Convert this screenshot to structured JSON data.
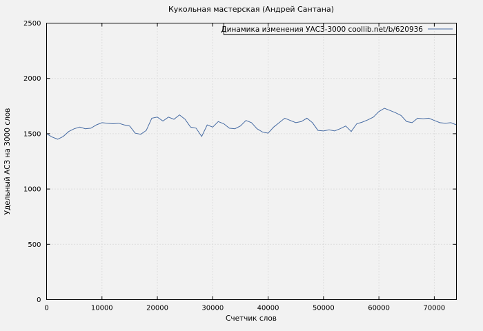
{
  "colors": {
    "background": "#f2f2f2",
    "axis": "#000000",
    "grid": "#c8c8c8",
    "line": "#466ba3"
  },
  "chart_data": {
    "type": "line",
    "title": "Кукольная мастерская (Андрей Сантана)",
    "xlabel": "Счетчик слов",
    "ylabel": "Удельный АСЗ на 3000 слов",
    "xlim": [
      0,
      74000
    ],
    "ylim": [
      0,
      2500
    ],
    "xticks": [
      0,
      10000,
      20000,
      30000,
      40000,
      50000,
      60000,
      70000
    ],
    "yticks": [
      0,
      500,
      1000,
      1500,
      2000,
      2500
    ],
    "grid": true,
    "legend_position": "top-right-inside",
    "series": [
      {
        "name": "Динамика изменения УАСЗ-3000 coollib.net/b/620936",
        "color": "#466ba3",
        "x": [
          0,
          1000,
          2000,
          3000,
          4000,
          5000,
          6000,
          7000,
          8000,
          9000,
          10000,
          11000,
          12000,
          13000,
          14000,
          15000,
          16000,
          17000,
          18000,
          19000,
          20000,
          21000,
          22000,
          23000,
          24000,
          25000,
          26000,
          27000,
          28000,
          29000,
          30000,
          31000,
          32000,
          33000,
          34000,
          35000,
          36000,
          37000,
          38000,
          39000,
          40000,
          41000,
          42000,
          43000,
          44000,
          45000,
          46000,
          47000,
          48000,
          49000,
          50000,
          51000,
          52000,
          53000,
          54000,
          55000,
          56000,
          57000,
          58000,
          59000,
          60000,
          61000,
          62000,
          63000,
          64000,
          65000,
          66000,
          67000,
          68000,
          69000,
          70000,
          71000,
          72000,
          73000,
          74000
        ],
        "y": [
          1500,
          1470,
          1450,
          1475,
          1520,
          1545,
          1560,
          1545,
          1550,
          1580,
          1600,
          1595,
          1590,
          1595,
          1580,
          1570,
          1505,
          1495,
          1530,
          1640,
          1650,
          1615,
          1650,
          1630,
          1670,
          1630,
          1560,
          1550,
          1475,
          1580,
          1560,
          1610,
          1590,
          1550,
          1545,
          1570,
          1620,
          1600,
          1545,
          1515,
          1505,
          1560,
          1600,
          1640,
          1620,
          1600,
          1610,
          1640,
          1600,
          1530,
          1525,
          1535,
          1525,
          1545,
          1570,
          1520,
          1590,
          1605,
          1625,
          1650,
          1700,
          1730,
          1710,
          1690,
          1665,
          1610,
          1600,
          1640,
          1635,
          1640,
          1620,
          1600,
          1595,
          1600,
          1580
        ]
      }
    ]
  }
}
